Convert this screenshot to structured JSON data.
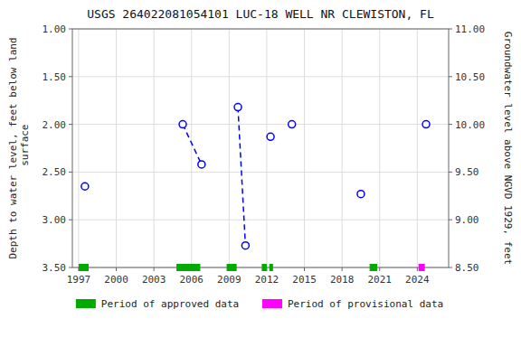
{
  "chart_data": {
    "type": "scatter",
    "title": "USGS 264022081054101 LUC-18 WELL NR CLEWISTON, FL",
    "y_label": "Depth to water level, feet below land\n surface",
    "y2_label": "Groundwater level above NGVD 1929, feet",
    "xlim": [
      1996.5,
      2026.5
    ],
    "xticks": [
      1997,
      2000,
      2003,
      2006,
      2009,
      2012,
      2015,
      2018,
      2021,
      2024
    ],
    "ylim": [
      3.5,
      1.0
    ],
    "yticks": [
      {
        "value": 1.0,
        "label": "1.00"
      },
      {
        "value": 1.5,
        "label": "1.50"
      },
      {
        "value": 2.0,
        "label": "2.00"
      },
      {
        "value": 2.5,
        "label": "2.50"
      },
      {
        "value": 3.0,
        "label": "3.00"
      },
      {
        "value": 3.5,
        "label": "3.50"
      }
    ],
    "y2lim": [
      8.5,
      11.0
    ],
    "y2ticks": [
      {
        "value": 8.5,
        "label": "8.50"
      },
      {
        "value": 9.0,
        "label": "9.00"
      },
      {
        "value": 9.5,
        "label": "9.50"
      },
      {
        "value": 10.0,
        "label": "10.00"
      },
      {
        "value": 10.5,
        "label": "10.50"
      },
      {
        "value": 11.0,
        "label": "11.00"
      }
    ],
    "grid": true,
    "legend": "bottom",
    "series": [
      {
        "type": "line",
        "line_style": "dashed",
        "color": "blue",
        "x": [
          2005.3,
          2006.8
        ],
        "values": [
          2.0,
          2.42
        ]
      },
      {
        "type": "line",
        "line_style": "dashed",
        "color": "blue",
        "x": [
          2009.7,
          2010.3
        ],
        "values": [
          1.82,
          3.27
        ]
      },
      {
        "type": "scatter",
        "marker": "circle",
        "color": "blue",
        "x": [
          1997.5,
          2005.3,
          2006.8,
          2009.7,
          2010.3,
          2012.3,
          2014.0,
          2019.5,
          2024.7
        ],
        "values": [
          2.65,
          2.0,
          2.42,
          1.82,
          3.27,
          2.13,
          2.0,
          2.73,
          2.0
        ]
      },
      {
        "name": "Period of approved data",
        "type": "period",
        "color": "#00aa00",
        "y": 3.5,
        "start": [
          1997.0,
          2004.8,
          2008.8,
          2011.6,
          2012.2,
          2020.2
        ],
        "end": [
          1997.8,
          2006.7,
          2009.6,
          2012.0,
          2012.5,
          2020.8
        ]
      },
      {
        "name": "Period of provisional data",
        "type": "period",
        "color": "#ff00ff",
        "y": 3.5,
        "start": [
          2024.1
        ],
        "end": [
          2024.6
        ]
      }
    ]
  }
}
